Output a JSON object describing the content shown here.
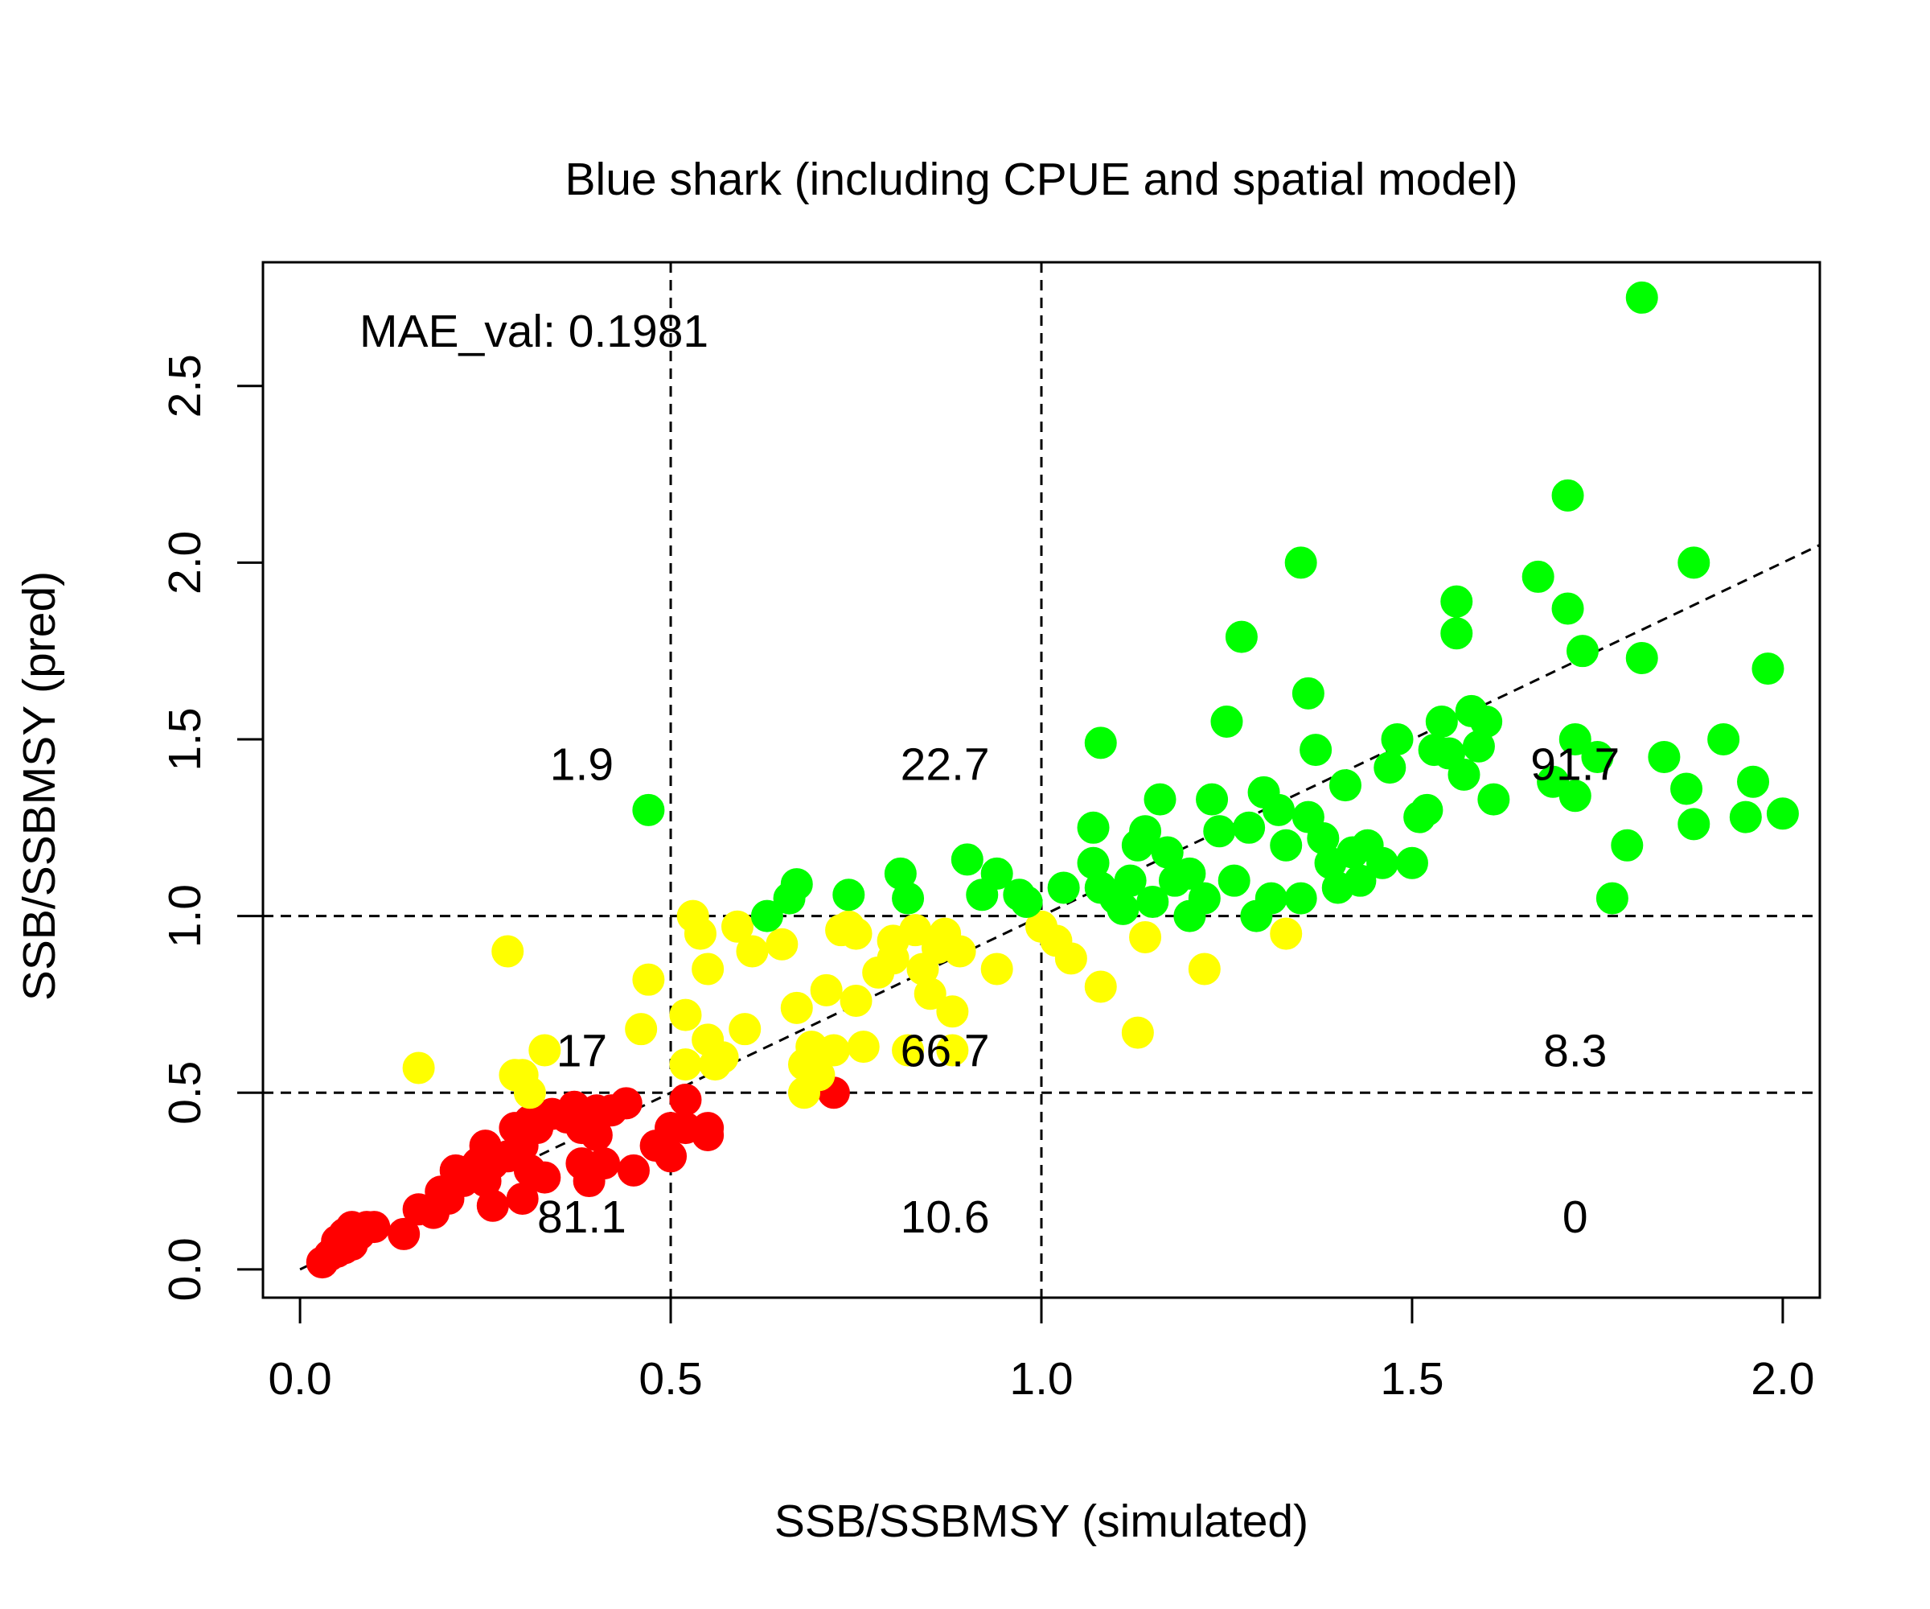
{
  "chart_data": {
    "type": "scatter",
    "title": "Blue shark (including CPUE and spatial model)",
    "xlabel": "SSB/SSBMSY (simulated)",
    "ylabel": "SSB/SSBMSY (pred)",
    "xlim": [
      -0.05,
      2.05
    ],
    "ylim": [
      -0.08,
      2.85
    ],
    "xticks": [
      0.0,
      0.5,
      1.0,
      1.5,
      2.0
    ],
    "xtick_labels": [
      "0.0",
      "0.5",
      "1.0",
      "1.5",
      "2.0"
    ],
    "yticks": [
      0.0,
      0.5,
      1.0,
      1.5,
      2.0,
      2.5
    ],
    "ytick_labels": [
      "0.0",
      "0.5",
      "1.0",
      "1.5",
      "2.0",
      "2.5"
    ],
    "grid": false,
    "reference_lines": {
      "vertical": [
        0.5,
        1.0
      ],
      "horizontal": [
        0.5,
        1.0
      ],
      "diagonal": "y = x"
    },
    "annotation": "MAE_val: 0.1981",
    "quadrant_labels": [
      {
        "text": "1.9",
        "x": 0.38,
        "y": 1.43
      },
      {
        "text": "22.7",
        "x": 0.87,
        "y": 1.43
      },
      {
        "text": "91.7",
        "x": 1.72,
        "y": 1.43
      },
      {
        "text": "17",
        "x": 0.38,
        "y": 0.62
      },
      {
        "text": "66.7",
        "x": 0.87,
        "y": 0.62
      },
      {
        "text": "8.3",
        "x": 1.72,
        "y": 0.62
      },
      {
        "text": "81.1",
        "x": 0.38,
        "y": 0.15
      },
      {
        "text": "10.6",
        "x": 0.87,
        "y": 0.15
      },
      {
        "text": "0",
        "x": 1.72,
        "y": 0.15
      }
    ],
    "colors": {
      "red": "#ff0000",
      "yellow": "#ffff00",
      "green": "#00ff00"
    },
    "series": [
      {
        "color": "red",
        "points": [
          [
            0.03,
            0.02
          ],
          [
            0.04,
            0.04
          ],
          [
            0.05,
            0.05
          ],
          [
            0.05,
            0.08
          ],
          [
            0.06,
            0.06
          ],
          [
            0.06,
            0.1
          ],
          [
            0.07,
            0.07
          ],
          [
            0.07,
            0.12
          ],
          [
            0.08,
            0.1
          ],
          [
            0.09,
            0.12
          ],
          [
            0.1,
            0.12
          ],
          [
            0.14,
            0.1
          ],
          [
            0.16,
            0.17
          ],
          [
            0.18,
            0.16
          ],
          [
            0.19,
            0.22
          ],
          [
            0.2,
            0.2
          ],
          [
            0.21,
            0.28
          ],
          [
            0.22,
            0.25
          ],
          [
            0.23,
            0.28
          ],
          [
            0.24,
            0.3
          ],
          [
            0.25,
            0.25
          ],
          [
            0.25,
            0.35
          ],
          [
            0.26,
            0.18
          ],
          [
            0.26,
            0.3
          ],
          [
            0.28,
            0.32
          ],
          [
            0.29,
            0.4
          ],
          [
            0.3,
            0.2
          ],
          [
            0.3,
            0.35
          ],
          [
            0.31,
            0.28
          ],
          [
            0.31,
            0.42
          ],
          [
            0.32,
            0.4
          ],
          [
            0.33,
            0.26
          ],
          [
            0.34,
            0.44
          ],
          [
            0.36,
            0.43
          ],
          [
            0.37,
            0.46
          ],
          [
            0.38,
            0.3
          ],
          [
            0.38,
            0.4
          ],
          [
            0.39,
            0.25
          ],
          [
            0.4,
            0.38
          ],
          [
            0.4,
            0.45
          ],
          [
            0.41,
            0.3
          ],
          [
            0.42,
            0.45
          ],
          [
            0.44,
            0.47
          ],
          [
            0.45,
            0.28
          ],
          [
            0.48,
            0.35
          ],
          [
            0.5,
            0.4
          ],
          [
            0.5,
            0.32
          ],
          [
            0.52,
            0.4
          ],
          [
            0.52,
            0.48
          ],
          [
            0.55,
            0.4
          ],
          [
            0.55,
            0.38
          ],
          [
            0.72,
            0.5
          ]
        ]
      },
      {
        "color": "yellow",
        "points": [
          [
            0.16,
            0.57
          ],
          [
            0.28,
            0.9
          ],
          [
            0.29,
            0.55
          ],
          [
            0.3,
            0.55
          ],
          [
            0.31,
            0.5
          ],
          [
            0.33,
            0.62
          ],
          [
            0.46,
            0.68
          ],
          [
            0.47,
            0.82
          ],
          [
            0.52,
            0.72
          ],
          [
            0.52,
            0.58
          ],
          [
            0.53,
            1.0
          ],
          [
            0.54,
            0.95
          ],
          [
            0.55,
            0.85
          ],
          [
            0.55,
            0.65
          ],
          [
            0.56,
            0.58
          ],
          [
            0.57,
            0.6
          ],
          [
            0.59,
            0.97
          ],
          [
            0.6,
            0.68
          ],
          [
            0.61,
            0.9
          ],
          [
            0.65,
            0.92
          ],
          [
            0.67,
            0.74
          ],
          [
            0.68,
            0.5
          ],
          [
            0.68,
            0.58
          ],
          [
            0.69,
            0.63
          ],
          [
            0.7,
            0.55
          ],
          [
            0.7,
            0.6
          ],
          [
            0.71,
            0.79
          ],
          [
            0.72,
            0.62
          ],
          [
            0.73,
            0.96
          ],
          [
            0.74,
            0.97
          ],
          [
            0.75,
            0.76
          ],
          [
            0.75,
            0.95
          ],
          [
            0.76,
            0.63
          ],
          [
            0.78,
            0.84
          ],
          [
            0.8,
            0.93
          ],
          [
            0.8,
            0.88
          ],
          [
            0.82,
            0.62
          ],
          [
            0.83,
            0.96
          ],
          [
            0.84,
            0.85
          ],
          [
            0.85,
            0.78
          ],
          [
            0.86,
            0.91
          ],
          [
            0.87,
            0.95
          ],
          [
            0.88,
            0.62
          ],
          [
            0.88,
            0.73
          ],
          [
            0.89,
            0.9
          ],
          [
            0.94,
            0.85
          ],
          [
            1.0,
            0.97
          ],
          [
            1.02,
            0.93
          ],
          [
            1.04,
            0.88
          ],
          [
            1.08,
            0.8
          ],
          [
            1.13,
            0.67
          ],
          [
            1.14,
            0.94
          ],
          [
            1.22,
            0.85
          ],
          [
            1.33,
            0.95
          ]
        ]
      },
      {
        "color": "green",
        "points": [
          [
            0.47,
            1.3
          ],
          [
            0.63,
            1.0
          ],
          [
            0.66,
            1.05
          ],
          [
            0.67,
            1.09
          ],
          [
            0.74,
            1.06
          ],
          [
            0.81,
            1.12
          ],
          [
            0.82,
            1.05
          ],
          [
            0.9,
            1.16
          ],
          [
            0.92,
            1.06
          ],
          [
            0.94,
            1.12
          ],
          [
            0.97,
            1.06
          ],
          [
            0.98,
            1.04
          ],
          [
            1.03,
            1.08
          ],
          [
            1.07,
            1.25
          ],
          [
            1.07,
            1.15
          ],
          [
            1.08,
            1.49
          ],
          [
            1.08,
            1.08
          ],
          [
            1.1,
            1.05
          ],
          [
            1.11,
            1.02
          ],
          [
            1.12,
            1.1
          ],
          [
            1.13,
            1.2
          ],
          [
            1.14,
            1.24
          ],
          [
            1.15,
            1.04
          ],
          [
            1.16,
            1.33
          ],
          [
            1.17,
            1.18
          ],
          [
            1.18,
            1.1
          ],
          [
            1.2,
            1.12
          ],
          [
            1.2,
            1.0
          ],
          [
            1.22,
            1.05
          ],
          [
            1.23,
            1.33
          ],
          [
            1.24,
            1.24
          ],
          [
            1.25,
            1.55
          ],
          [
            1.26,
            1.1
          ],
          [
            1.27,
            1.79
          ],
          [
            1.28,
            1.25
          ],
          [
            1.29,
            1.0
          ],
          [
            1.3,
            1.35
          ],
          [
            1.31,
            1.05
          ],
          [
            1.32,
            1.3
          ],
          [
            1.33,
            1.2
          ],
          [
            1.35,
            1.05
          ],
          [
            1.35,
            2.0
          ],
          [
            1.36,
            1.63
          ],
          [
            1.36,
            1.28
          ],
          [
            1.37,
            1.47
          ],
          [
            1.38,
            1.22
          ],
          [
            1.39,
            1.15
          ],
          [
            1.4,
            1.08
          ],
          [
            1.41,
            1.37
          ],
          [
            1.42,
            1.18
          ],
          [
            1.43,
            1.1
          ],
          [
            1.44,
            1.2
          ],
          [
            1.46,
            1.15
          ],
          [
            1.47,
            1.42
          ],
          [
            1.48,
            1.5
          ],
          [
            1.5,
            1.15
          ],
          [
            1.51,
            1.28
          ],
          [
            1.52,
            1.3
          ],
          [
            1.53,
            1.47
          ],
          [
            1.54,
            1.55
          ],
          [
            1.55,
            1.46
          ],
          [
            1.56,
            1.89
          ],
          [
            1.56,
            1.8
          ],
          [
            1.57,
            1.4
          ],
          [
            1.58,
            1.58
          ],
          [
            1.59,
            1.48
          ],
          [
            1.6,
            1.55
          ],
          [
            1.61,
            1.33
          ],
          [
            1.67,
            1.96
          ],
          [
            1.69,
            1.38
          ],
          [
            1.71,
            2.19
          ],
          [
            1.71,
            1.87
          ],
          [
            1.72,
            1.34
          ],
          [
            1.72,
            1.5
          ],
          [
            1.73,
            1.75
          ],
          [
            1.75,
            1.45
          ],
          [
            1.77,
            1.05
          ],
          [
            1.79,
            1.2
          ],
          [
            1.81,
            2.75
          ],
          [
            1.81,
            1.73
          ],
          [
            1.84,
            1.45
          ],
          [
            1.87,
            1.36
          ],
          [
            1.88,
            1.26
          ],
          [
            1.88,
            2.0
          ],
          [
            1.92,
            1.5
          ],
          [
            1.95,
            1.28
          ],
          [
            1.96,
            1.38
          ],
          [
            1.98,
            1.7
          ],
          [
            2.0,
            1.29
          ]
        ]
      }
    ]
  }
}
